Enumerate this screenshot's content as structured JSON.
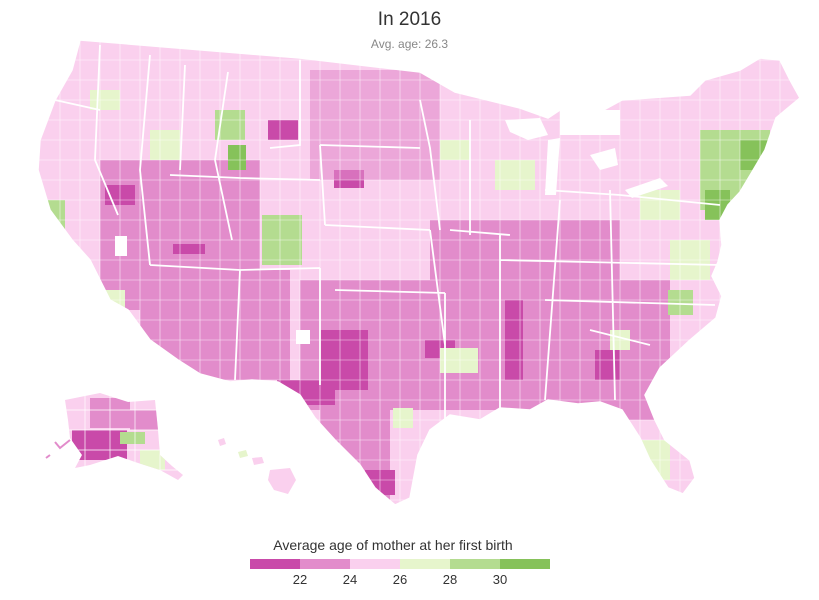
{
  "header": {
    "title": "In 2016",
    "subtitle": "Avg. age: 26.3"
  },
  "legend": {
    "title": "Average age of mother at her first birth",
    "bins": [
      {
        "color": "#c94aa9"
      },
      {
        "color": "#e28ccb"
      },
      {
        "color": "#fad0ee"
      },
      {
        "color": "#e6f5cc"
      },
      {
        "color": "#b4dc90"
      },
      {
        "color": "#86c25a"
      }
    ],
    "ticks": [
      "22",
      "24",
      "26",
      "28",
      "30"
    ]
  },
  "map": {
    "regions": [
      "contiguous-us",
      "alaska",
      "hawaii"
    ],
    "border_color": "#ffffff",
    "fill_colors": {
      "deep_magenta": "#c94aa9",
      "medium_magenta": "#e28ccb",
      "light_pink": "#fad0ee",
      "pale_green": "#e6f5cc",
      "light_green": "#b4dc90",
      "green": "#86c25a"
    }
  }
}
